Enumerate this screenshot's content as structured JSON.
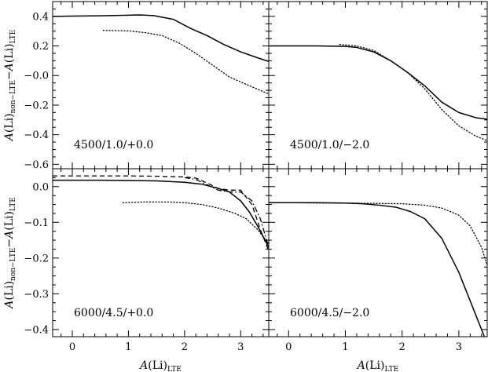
{
  "chart_data": [
    {
      "type": "line",
      "panel_label": "4500/1.0/+0.0",
      "xlabel_main": "",
      "xlabel_sub": "",
      "ylabel_main": "A(Li)",
      "ylabel_sub_nonlte": "non−LTE",
      "ylabel_sub_lte": "LTE",
      "xlim": [
        -0.35,
        3.5
      ],
      "ylim": [
        -0.63,
        0.5
      ],
      "xticks": [
        0,
        1,
        2,
        3
      ],
      "xtick_labels": [],
      "yticks": [
        0.4,
        0.2,
        0.0,
        -0.2,
        -0.4,
        -0.6
      ],
      "ytick_labels": [
        "0.4",
        "0.2",
        "−0.0",
        "−0.2",
        "−0.4",
        "−0.6"
      ],
      "series": [
        {
          "style": "solid",
          "x": [
            -0.35,
            0,
            0.5,
            1.0,
            1.2,
            1.45,
            1.8,
            2.1,
            2.4,
            2.7,
            3.0,
            3.3,
            3.5
          ],
          "y": [
            0.4,
            0.402,
            0.404,
            0.408,
            0.41,
            0.405,
            0.38,
            0.32,
            0.27,
            0.21,
            0.16,
            0.12,
            0.095
          ]
        },
        {
          "style": "dotted",
          "x": [
            0.55,
            1.0,
            1.3,
            1.6,
            1.9,
            2.2,
            2.5,
            2.8,
            3.1,
            3.5
          ],
          "y": [
            0.305,
            0.302,
            0.29,
            0.27,
            0.22,
            0.15,
            0.07,
            -0.01,
            -0.06,
            -0.125
          ]
        }
      ]
    },
    {
      "type": "line",
      "panel_label": "4500/1.0/−2.0",
      "xlabel_main": "",
      "xlabel_sub": "",
      "xlim": [
        -0.35,
        3.5
      ],
      "ylim": [
        -0.63,
        0.5
      ],
      "xticks": [
        0,
        1,
        2,
        3
      ],
      "xtick_labels": [],
      "yticks": [
        0.4,
        0.2,
        0.0,
        -0.2,
        -0.4,
        -0.6
      ],
      "ytick_labels": [],
      "series": [
        {
          "style": "solid",
          "x": [
            -0.35,
            0,
            0.5,
            1.0,
            1.2,
            1.5,
            1.8,
            2.1,
            2.4,
            2.7,
            3.0,
            3.3,
            3.5
          ],
          "y": [
            0.2,
            0.2,
            0.2,
            0.197,
            0.19,
            0.16,
            0.1,
            0.02,
            -0.07,
            -0.18,
            -0.25,
            -0.285,
            -0.295
          ]
        },
        {
          "style": "dotted",
          "x": [
            0.9,
            1.2,
            1.5,
            1.8,
            2.1,
            2.4,
            2.7,
            3.0,
            3.3,
            3.5
          ],
          "y": [
            0.21,
            0.2,
            0.17,
            0.1,
            0.02,
            -0.09,
            -0.23,
            -0.34,
            -0.41,
            -0.44
          ]
        }
      ]
    },
    {
      "type": "line",
      "panel_label": "6000/4.5/+0.0",
      "xlabel_main": "A(Li)",
      "xlabel_sub": "LTE",
      "ylabel_main": "A(Li)",
      "ylabel_sub_nonlte": "non−LTE",
      "ylabel_sub_lte": "LTE",
      "xlim": [
        -0.35,
        3.5
      ],
      "ylim": [
        -0.42,
        0.05
      ],
      "xticks": [
        0,
        1,
        2,
        3
      ],
      "xtick_labels": [
        "0",
        "1",
        "2",
        "3"
      ],
      "yticks": [
        0.0,
        -0.1,
        -0.2,
        -0.3,
        -0.4
      ],
      "ytick_labels": [
        "0.0",
        "−0.1",
        "−0.2",
        "−0.3",
        "−0.4"
      ],
      "series": [
        {
          "style": "solid",
          "x": [
            -0.35,
            0,
            0.5,
            1.0,
            1.5,
            2.0,
            2.3,
            2.6,
            2.8,
            3.0,
            3.15,
            3.3,
            3.5
          ],
          "y": [
            0.018,
            0.018,
            0.018,
            0.017,
            0.016,
            0.012,
            0.007,
            -0.005,
            -0.015,
            -0.04,
            -0.07,
            -0.11,
            -0.17
          ]
        },
        {
          "style": "dashed",
          "x": [
            -0.35,
            0,
            0.5,
            1.0,
            1.5,
            2.0,
            2.2,
            2.4,
            2.6,
            2.8,
            3.0,
            3.2,
            3.35,
            3.5
          ],
          "y": [
            0.03,
            0.03,
            0.03,
            0.03,
            0.029,
            0.027,
            0.024,
            0.01,
            -0.005,
            -0.01,
            -0.01,
            -0.05,
            -0.12,
            -0.18
          ]
        },
        {
          "style": "dashdot",
          "x": [
            2.0,
            2.2,
            2.4,
            2.6,
            2.8,
            3.0,
            3.2,
            3.35,
            3.5
          ],
          "y": [
            0.025,
            0.02,
            0.005,
            -0.01,
            -0.015,
            -0.015,
            -0.04,
            -0.09,
            -0.17
          ]
        },
        {
          "style": "dotted",
          "x": [
            0.9,
            1.3,
            1.7,
            2.0,
            2.3,
            2.6,
            2.9,
            3.1,
            3.3,
            3.5
          ],
          "y": [
            -0.045,
            -0.043,
            -0.043,
            -0.045,
            -0.05,
            -0.06,
            -0.075,
            -0.09,
            -0.12,
            -0.16
          ]
        }
      ]
    },
    {
      "type": "line",
      "panel_label": "6000/4.5/−2.0",
      "xlabel_main": "A(Li)",
      "xlabel_sub": "LTE",
      "xlim": [
        -0.35,
        3.5
      ],
      "ylim": [
        -0.42,
        0.05
      ],
      "xticks": [
        0,
        1,
        2,
        3
      ],
      "xtick_labels": [
        "0",
        "1",
        "2",
        "3"
      ],
      "yticks": [
        0.0,
        -0.1,
        -0.2,
        -0.3,
        -0.4
      ],
      "ytick_labels": [],
      "series": [
        {
          "style": "solid",
          "x": [
            -0.35,
            0,
            0.5,
            1.0,
            1.3,
            1.6,
            1.9,
            2.15,
            2.4,
            2.7,
            3.0,
            3.25,
            3.45
          ],
          "y": [
            -0.045,
            -0.045,
            -0.045,
            -0.046,
            -0.048,
            -0.052,
            -0.058,
            -0.07,
            -0.09,
            -0.145,
            -0.24,
            -0.34,
            -0.42
          ]
        },
        {
          "style": "dotted",
          "x": [
            -0.35,
            0,
            0.5,
            1.0,
            1.5,
            2.0,
            2.4,
            2.7,
            3.0,
            3.2,
            3.4,
            3.5
          ],
          "y": [
            -0.045,
            -0.045,
            -0.046,
            -0.046,
            -0.047,
            -0.048,
            -0.052,
            -0.06,
            -0.08,
            -0.11,
            -0.17,
            -0.22
          ]
        }
      ]
    }
  ]
}
